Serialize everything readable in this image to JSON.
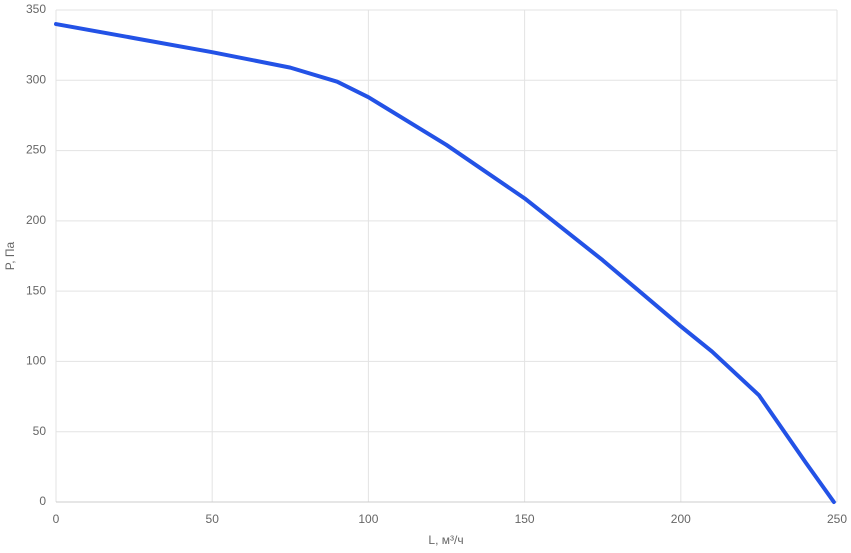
{
  "chart_data": {
    "type": "line",
    "x_label": "L, м³/ч",
    "y_label": "P, Па",
    "x": [
      0,
      25,
      50,
      75,
      90,
      100,
      125,
      150,
      175,
      200,
      210,
      225,
      240,
      249
    ],
    "series": [
      {
        "name": "P",
        "color": "#2352e6",
        "values": [
          340,
          330,
          320,
          309,
          299,
          288,
          254,
          216,
          172,
          125,
          107,
          76,
          28,
          0
        ]
      }
    ],
    "xlim": [
      0,
      250
    ],
    "xticks": [
      0,
      50,
      100,
      150,
      200,
      250
    ],
    "ylim": [
      0,
      350
    ],
    "yticks": [
      0,
      50,
      100,
      150,
      200,
      250,
      300,
      350
    ],
    "grid": true
  }
}
